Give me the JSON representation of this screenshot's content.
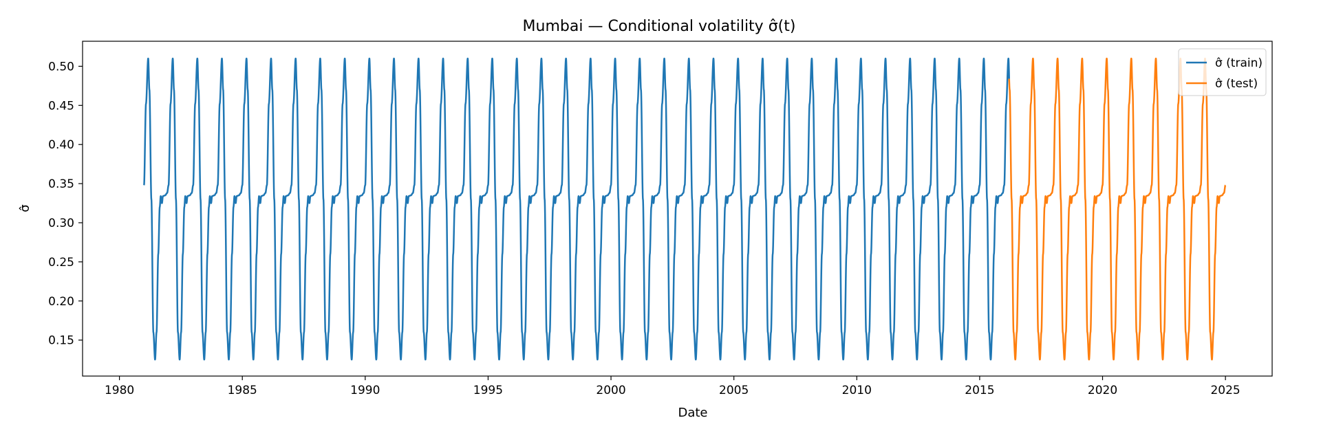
{
  "chart_data": {
    "type": "line",
    "title": "Mumbai — Conditional volatility σ̂(t)",
    "xlabel": "Date",
    "ylabel": "σ̂",
    "xlim": [
      1978.5,
      2026.9
    ],
    "ylim": [
      0.104,
      0.532
    ],
    "x_ticks": [
      1980,
      1985,
      1990,
      1995,
      2000,
      2005,
      2010,
      2015,
      2020,
      2025
    ],
    "y_ticks": [
      0.15,
      0.2,
      0.25,
      0.3,
      0.35,
      0.4,
      0.45,
      0.5
    ],
    "y_tick_labels": [
      "0.15",
      "0.20",
      "0.25",
      "0.30",
      "0.35",
      "0.40",
      "0.45",
      "0.50"
    ],
    "grid": false,
    "legend_position": "top-right",
    "cycle": {
      "period_years": 1.0,
      "shape": [
        [
          0.0,
          0.348
        ],
        [
          0.08,
          0.452
        ],
        [
          0.17,
          0.51
        ],
        [
          0.22,
          0.47
        ],
        [
          0.3,
          0.33
        ],
        [
          0.38,
          0.16
        ],
        [
          0.45,
          0.125
        ],
        [
          0.51,
          0.16
        ],
        [
          0.58,
          0.26
        ],
        [
          0.64,
          0.32
        ],
        [
          0.68,
          0.334
        ],
        [
          0.73,
          0.325
        ],
        [
          0.77,
          0.334
        ],
        [
          0.86,
          0.335
        ],
        [
          0.94,
          0.338
        ],
        [
          1.0,
          0.348
        ]
      ]
    },
    "series": [
      {
        "name": "σ̂ (train)",
        "color": "#1f77b4",
        "x_start": 1981.0,
        "x_end": 2016.2
      },
      {
        "name": "σ̂ (test)",
        "color": "#ff7f0e",
        "x_start": 2016.2,
        "x_end": 2025.0
      }
    ]
  }
}
